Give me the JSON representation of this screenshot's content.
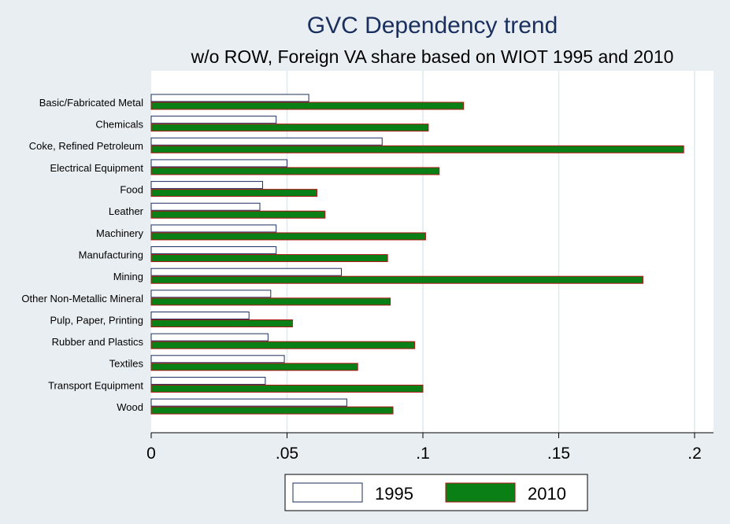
{
  "chart_data": {
    "type": "bar",
    "orientation": "horizontal",
    "title": "GVC Dependency trend",
    "subtitle": "w/o ROW, Foreign VA share based on WIOT 1995 and 2010",
    "categories": [
      "Basic/Fabricated Metal",
      "Chemicals",
      "Coke, Refined Petroleum",
      "Electrical Equipment",
      "Food",
      "Leather",
      "Machinery",
      "Manufacturing",
      "Mining",
      "Other Non-Metallic Mineral",
      "Pulp, Paper, Printing",
      "Rubber and Plastics",
      "Textiles",
      "Transport Equipment",
      "Wood"
    ],
    "series": [
      {
        "name": "1995",
        "values": [
          0.058,
          0.046,
          0.085,
          0.05,
          0.041,
          0.04,
          0.046,
          0.046,
          0.07,
          0.044,
          0.036,
          0.043,
          0.049,
          0.042,
          0.072
        ]
      },
      {
        "name": "2010",
        "values": [
          0.115,
          0.102,
          0.196,
          0.106,
          0.061,
          0.064,
          0.101,
          0.087,
          0.181,
          0.088,
          0.052,
          0.097,
          0.076,
          0.1,
          0.089
        ]
      }
    ],
    "xlim": [
      0,
      0.2
    ],
    "xticks": [
      0,
      0.05,
      0.1,
      0.15,
      0.2
    ],
    "xtick_labels": [
      "0",
      ".05",
      ".1",
      ".15",
      ".2"
    ],
    "grid": true,
    "legend_position": "bottom"
  },
  "colors": {
    "background": "#e9eef2",
    "plot_area": "#ffffff",
    "grid": "#dfe9ee",
    "bar_1995_fill": "#ffffff",
    "bar_1995_stroke": "#1a2f5e",
    "bar_2010_fill": "#0a7f16",
    "bar_2010_stroke": "#b01515",
    "title": "#1a2f5e"
  }
}
